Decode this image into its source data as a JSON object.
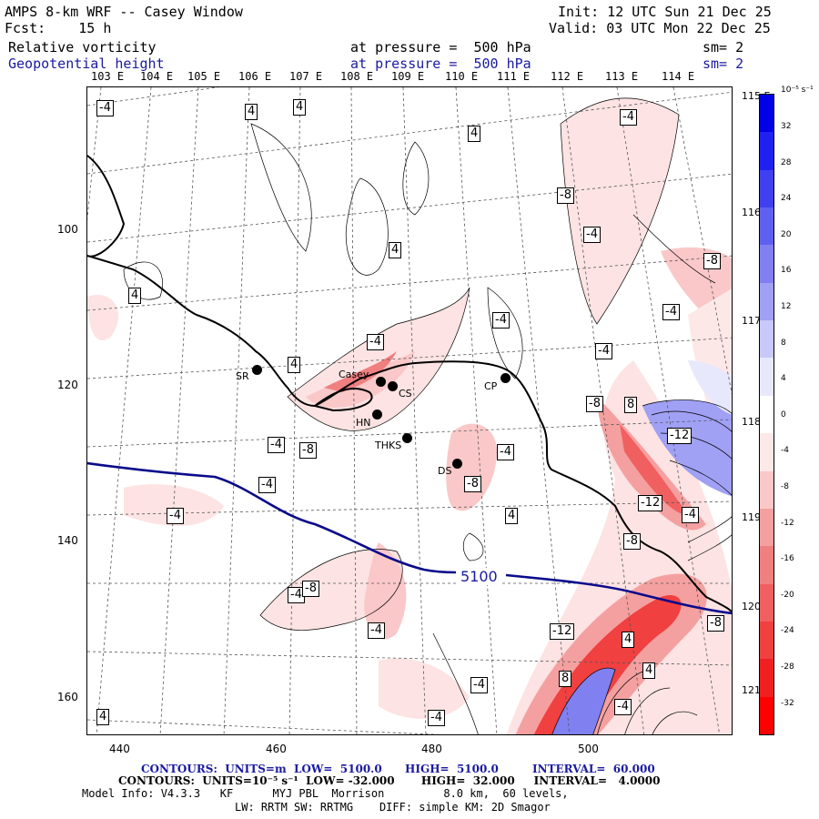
{
  "header": {
    "title": "AMPS 8-km WRF -- Casey Window",
    "fcst": "Fcst:    15 h",
    "init": "Init: 12 UTC Sun 21 Dec 25",
    "valid": "Valid: 03 UTC Mon 22 Dec 25",
    "field1": "Relative vorticity",
    "field1_level": "at pressure =  500 hPa",
    "field1_sm": "sm= 2",
    "field2": "Geopotential height",
    "field2_level": "at pressure =  500 hPa",
    "field2_sm": "sm= 2"
  },
  "longitudes": [
    "103 E",
    "104 E",
    "105 E",
    "106 E",
    "107 E",
    "108 E",
    "109 E",
    "110 E",
    "111 E",
    "112 E",
    "113 E",
    "114 E"
  ],
  "latitudes_right": [
    "115 E",
    "116 E",
    "117 E",
    "118 E",
    "119 E",
    "120 E",
    "121 E"
  ],
  "grid_y": [
    "100",
    "120",
    "140",
    "160"
  ],
  "grid_x": [
    "440",
    "460",
    "480",
    "500"
  ],
  "contour_labels": [
    "-4",
    "4",
    "4",
    "-4",
    "4",
    "-8",
    "-4",
    "4",
    "-8",
    "4",
    "-4",
    "-4",
    "-4",
    "-4",
    "4",
    "-8",
    "8",
    "-12",
    "-4",
    "-8",
    "-4",
    "-8",
    "-12",
    "-4",
    "-8",
    "-12",
    "-4",
    "-4",
    "-4",
    "-4",
    "4",
    "-4",
    "8",
    "4",
    "-4",
    "4",
    "-4",
    "4",
    "-8",
    "-8"
  ],
  "height_label": "5100",
  "stations": [
    {
      "name": "SR"
    },
    {
      "name": "Casey"
    },
    {
      "name": "CS"
    },
    {
      "name": "CP"
    },
    {
      "name": "HN"
    },
    {
      "name": "THKS"
    },
    {
      "name": "DS"
    }
  ],
  "colorbar": {
    "unit": "10⁻⁵ s⁻¹",
    "labels": [
      "32",
      "28",
      "24",
      "20",
      "16",
      "12",
      "8",
      "4",
      "0",
      "-4",
      "-8",
      "-12",
      "-16",
      "-20",
      "-24",
      "-28",
      "-32"
    ],
    "colors": [
      "#0000e6",
      "#2020f0",
      "#4040f0",
      "#6060f0",
      "#8080f0",
      "#a0a0f5",
      "#c8c8fa",
      "#e8e8fd",
      "#ffffff",
      "#fde8e8",
      "#fac8c8",
      "#f5a0a0",
      "#f08080",
      "#f06060",
      "#f04040",
      "#f02020",
      "#ff0000"
    ]
  },
  "footer": {
    "line1a": "CONTOURS:  UNITS=m  LOW=  5100.0",
    "line1b": "HIGH=  5100.0",
    "line1c": "INTERVAL=  60.000",
    "line2": "CONTOURS:  UNITS=10⁻⁵ s⁻¹  LOW= -32.000       HIGH=  32.000     INTERVAL=   4.0000",
    "line3": "Model Info: V4.3.3   KF      MYJ PBL  Morrison         8.0 km,  60 levels,",
    "line4": "LW: RRTM SW: RRTMG    DIFF: simple KM: 2D Smagor"
  }
}
